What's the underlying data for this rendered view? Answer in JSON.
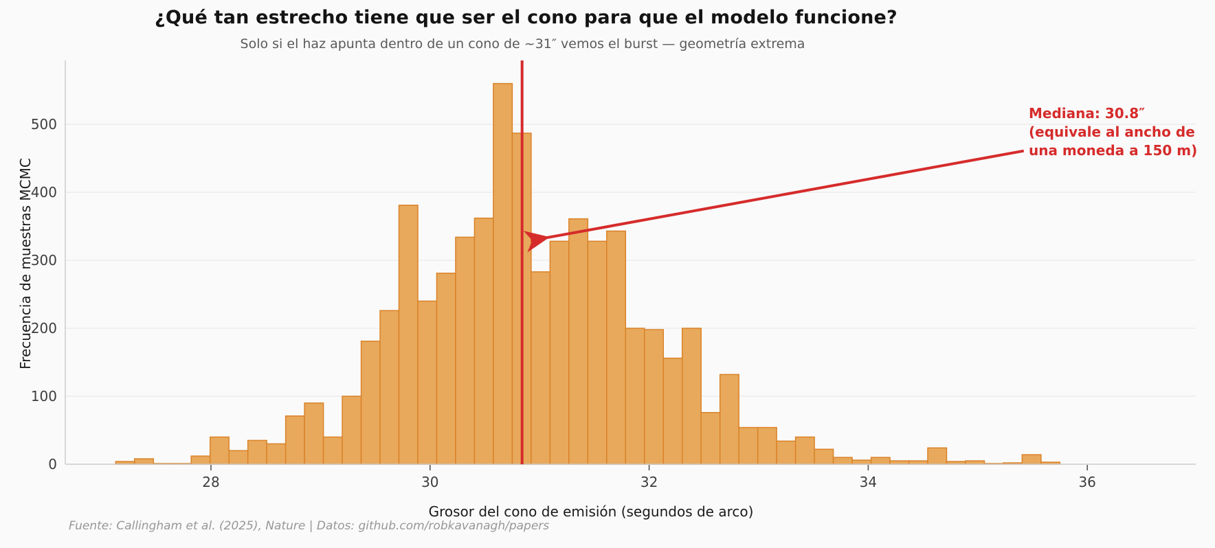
{
  "figure": {
    "title": "¿Qué tan estrecho tiene que ser el cono para que el modelo funcione?",
    "subtitle": "Solo si el haz apunta dentro de un cono de ~31″ vemos el burst — geometría extrema",
    "footer": "Fuente: Callingham et al. (2025), Nature | Datos: github.com/robkavanagh/papers"
  },
  "annotation": {
    "text_lines": [
      "Mediana: 30.8″",
      "(equivale al ancho de",
      "una moneda a 150 m)"
    ],
    "color": "#d62b2b"
  },
  "chart_data": {
    "type": "bar",
    "subtype": "histogram",
    "title": "¿Qué tan estrecho tiene que ser el cono para que el modelo funcione?",
    "xlabel": "Grosor del cono de emisión (segundos de arco)",
    "ylabel": "Frecuencia de muestras MCMC",
    "bin_start": 27.13,
    "bin_width": 0.1724,
    "values": [
      4,
      8,
      1,
      1,
      12,
      40,
      20,
      35,
      30,
      71,
      90,
      40,
      100,
      181,
      226,
      381,
      240,
      281,
      334,
      362,
      560,
      487,
      283,
      328,
      361,
      328,
      343,
      200,
      198,
      156,
      200,
      76,
      132,
      54,
      54,
      34,
      40,
      22,
      10,
      6,
      10,
      5,
      5,
      24,
      4,
      5,
      1,
      2,
      14,
      3
    ],
    "x_ticks": [
      28,
      30,
      32,
      34,
      36
    ],
    "y_ticks": [
      0,
      100,
      200,
      300,
      400,
      500
    ],
    "xlim": [
      26.67,
      36.99
    ],
    "ylim": [
      0,
      594
    ],
    "grid": "horizontal",
    "legend": "none",
    "median_line_x": 30.84,
    "bar_fill": "#e8a95c",
    "bar_edge": "#da8228",
    "accent_red": "#d62b2b",
    "grid_color": "#ebebeb",
    "spine_color": "#cccccc",
    "arrow": {
      "from_x": 35.42,
      "from_y": 461,
      "to_x": 30.92,
      "to_y": 329
    }
  }
}
